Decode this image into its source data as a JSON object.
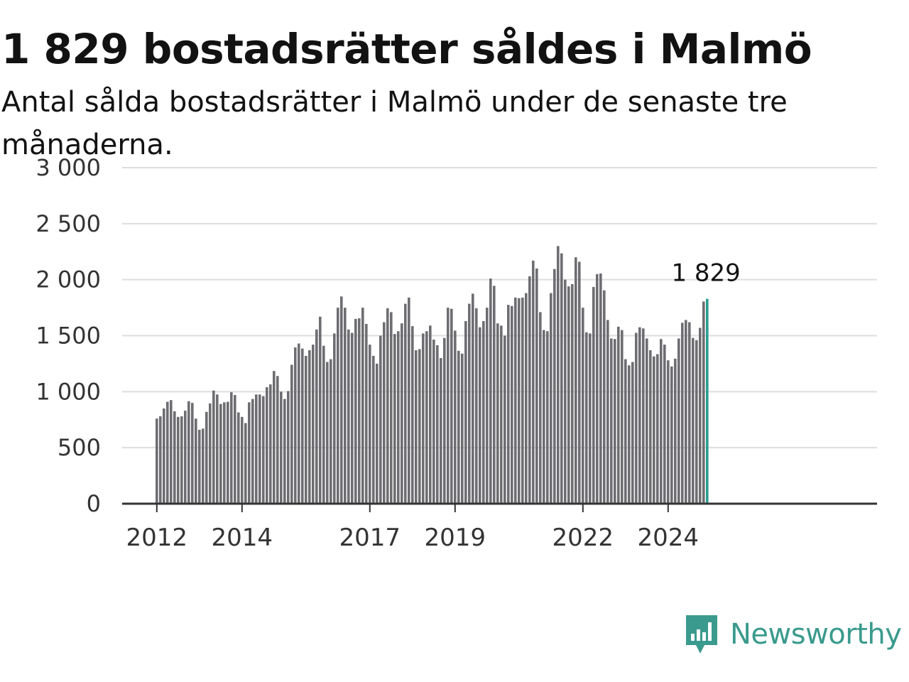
{
  "title": "1 829 bostadsrätter såldes i Malmö",
  "subtitle": "Antal sålda bostadsrätter i Malmö under de senaste tre månaderna.",
  "brand": {
    "name": "Newsworthy",
    "color": "#3a9a8d",
    "icon": "newsworthy-chart-bubble-icon"
  },
  "colors": {
    "bar": "#6d6d72",
    "highlight": "#2a9d8f",
    "grid": "#dddddd",
    "axis": "#333333"
  },
  "chart_data": {
    "type": "bar",
    "x_start": "2012-01",
    "x_end": "2024-10",
    "y_ticks": [
      0,
      500,
      1000,
      1500,
      2000,
      2500,
      3000
    ],
    "y_tick_labels": [
      "0",
      "500",
      "1 000",
      "1 500",
      "2 000",
      "2 500",
      "3 000"
    ],
    "ylim": [
      0,
      3000
    ],
    "x_ticks": [
      "2012",
      "2014",
      "2017",
      "2019",
      "2022",
      "2024"
    ],
    "last_value_label": "1 829",
    "grid": true,
    "values": [
      760,
      780,
      850,
      910,
      925,
      825,
      775,
      780,
      830,
      915,
      900,
      760,
      660,
      670,
      820,
      895,
      1010,
      975,
      890,
      905,
      910,
      995,
      970,
      815,
      775,
      720,
      905,
      935,
      975,
      975,
      960,
      1040,
      1065,
      1185,
      1140,
      1000,
      935,
      1005,
      1240,
      1395,
      1430,
      1385,
      1320,
      1370,
      1420,
      1555,
      1670,
      1410,
      1265,
      1290,
      1520,
      1750,
      1850,
      1750,
      1555,
      1525,
      1650,
      1655,
      1750,
      1605,
      1420,
      1320,
      1250,
      1500,
      1620,
      1745,
      1710,
      1515,
      1540,
      1610,
      1785,
      1840,
      1585,
      1370,
      1380,
      1520,
      1540,
      1590,
      1465,
      1415,
      1300,
      1480,
      1750,
      1740,
      1545,
      1365,
      1340,
      1630,
      1785,
      1875,
      1745,
      1575,
      1630,
      1750,
      2010,
      1945,
      1610,
      1590,
      1500,
      1775,
      1765,
      1840,
      1835,
      1840,
      1880,
      2030,
      2170,
      2100,
      1710,
      1550,
      1540,
      1880,
      2095,
      2300,
      2235,
      2000,
      1940,
      1960,
      2200,
      2160,
      1750,
      1530,
      1520,
      1935,
      2050,
      2055,
      1905,
      1640,
      1475,
      1470,
      1580,
      1550,
      1290,
      1235,
      1265,
      1525,
      1575,
      1565,
      1475,
      1370,
      1315,
      1335,
      1470,
      1420,
      1280,
      1225,
      1295,
      1475,
      1615,
      1640,
      1620,
      1480,
      1460,
      1570,
      1805,
      1829
    ]
  }
}
